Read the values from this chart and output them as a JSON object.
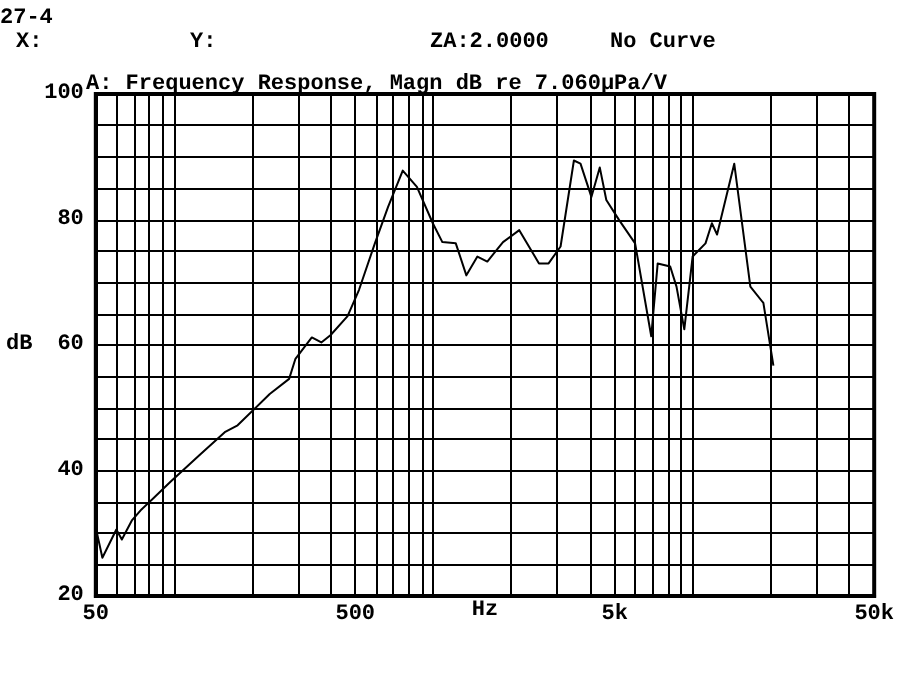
{
  "chart_data": {
    "type": "line",
    "title": "A: Frequency Response, Magn dB re 7.060μPa/V",
    "annotations": [
      "27-4",
      "X:",
      "Y:",
      "ZA:2.0000",
      "No Curve"
    ],
    "xlabel": "Hz",
    "ylabel": "dB",
    "log": "x",
    "grid": true,
    "marker": "none",
    "line_style": "solid",
    "xlim": [
      50,
      50000
    ],
    "ylim": [
      20,
      100
    ],
    "xticks": [
      {
        "value": 50,
        "label": "50"
      },
      {
        "value": 60,
        "label": null
      },
      {
        "value": 70,
        "label": null
      },
      {
        "value": 80,
        "label": null
      },
      {
        "value": 90,
        "label": null
      },
      {
        "value": 100,
        "label": null
      },
      {
        "value": 200,
        "label": null
      },
      {
        "value": 300,
        "label": null
      },
      {
        "value": 400,
        "label": null
      },
      {
        "value": 500,
        "label": "500"
      },
      {
        "value": 600,
        "label": null
      },
      {
        "value": 700,
        "label": null
      },
      {
        "value": 800,
        "label": null
      },
      {
        "value": 900,
        "label": null
      },
      {
        "value": 1000,
        "label": null
      },
      {
        "value": 2000,
        "label": null
      },
      {
        "value": 3000,
        "label": null
      },
      {
        "value": 4000,
        "label": null
      },
      {
        "value": 5000,
        "label": "5k"
      },
      {
        "value": 6000,
        "label": null
      },
      {
        "value": 7000,
        "label": null
      },
      {
        "value": 8000,
        "label": null
      },
      {
        "value": 9000,
        "label": null
      },
      {
        "value": 10000,
        "label": null
      },
      {
        "value": 20000,
        "label": null
      },
      {
        "value": 30000,
        "label": null
      },
      {
        "value": 40000,
        "label": null
      },
      {
        "value": 50000,
        "label": "50k"
      }
    ],
    "yticks": [
      20,
      {
        "value": 25,
        "label": null
      },
      {
        "value": 30,
        "label": null
      },
      {
        "value": 35,
        "label": null
      },
      40,
      {
        "value": 45,
        "label": null
      },
      {
        "value": 50,
        "label": null
      },
      {
        "value": 55,
        "label": null
      },
      60,
      {
        "value": 65,
        "label": null
      },
      {
        "value": 70,
        "label": null
      },
      {
        "value": 75,
        "label": null
      },
      80,
      {
        "value": 85,
        "label": null
      },
      {
        "value": 90,
        "label": null
      },
      {
        "value": 95,
        "label": null
      },
      100
    ],
    "series": [
      {
        "color": "#000000",
        "x": [
          50,
          53,
          60,
          63,
          69,
          75,
          82,
          97,
          125,
          157,
          176,
          234,
          278,
          294,
          340,
          370,
          402,
          467,
          517,
          595,
          669,
          762,
          864,
          995,
          1083,
          1220,
          1340,
          1478,
          1614,
          1855,
          2143,
          2553,
          2780,
          3092,
          3480,
          3690,
          4064,
          4378,
          4640,
          5200,
          5990,
          6913,
          7320,
          8180,
          8650,
          9270,
          9980,
          11190,
          11840,
          12400,
          14440,
          16660,
          18700,
          20440
        ],
        "values": [
          30.9,
          26.1,
          30.6,
          29,
          32.1,
          33.8,
          35.3,
          38.2,
          42.4,
          46.1,
          47.2,
          52.2,
          54.6,
          57.8,
          61.2,
          60.4,
          61.6,
          64.6,
          68.8,
          76.2,
          82,
          87.8,
          85.2,
          79.4,
          76.4,
          76.2,
          71.1,
          74.1,
          73.3,
          76.4,
          78.3,
          73,
          73,
          75.7,
          89.4,
          88.9,
          83.6,
          88.3,
          83.1,
          79.9,
          76.2,
          61.4,
          73,
          72.5,
          69.3,
          62.5,
          74.1,
          76.2,
          79.4,
          77.6,
          88.9,
          69.3,
          66.7,
          56.7
        ]
      }
    ]
  }
}
